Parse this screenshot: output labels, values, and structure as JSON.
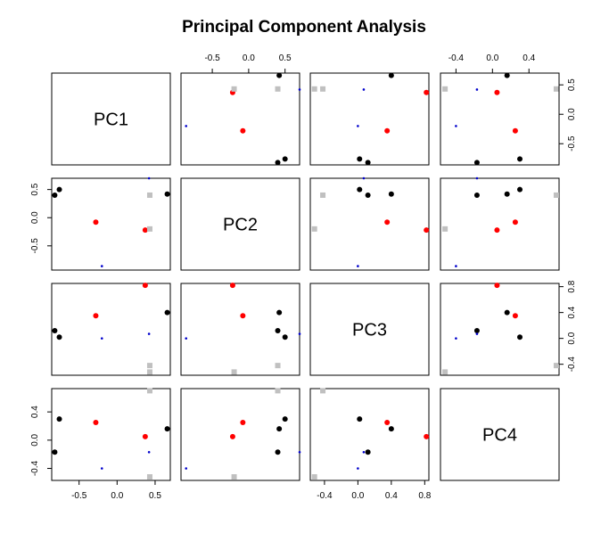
{
  "chart_data": {
    "type": "scatter",
    "title": "Principal Component Analysis",
    "variables": [
      "PC1",
      "PC2",
      "PC3",
      "PC4"
    ],
    "ranges": {
      "PC1": [
        -0.86,
        0.7
      ],
      "PC2": [
        -0.93,
        0.7
      ],
      "PC3": [
        -0.57,
        0.85
      ],
      "PC4": [
        -0.57,
        0.73
      ]
    },
    "ticks": {
      "PC1": [
        -0.5,
        0.0,
        0.5
      ],
      "PC2": [
        -0.5,
        0.0,
        0.5
      ],
      "PC3": [
        -0.4,
        0.0,
        0.4,
        0.8
      ],
      "PC4": [
        -0.4,
        0.0,
        0.4
      ]
    },
    "tick_labels": {
      "PC1": [
        "-0.5",
        "0.0",
        "0.5"
      ],
      "PC2": [
        "-0.5",
        "0.0",
        "0.5"
      ],
      "PC3": [
        "-0.4",
        "0.0",
        "0.4",
        "0.8"
      ],
      "PC4": [
        "-0.4",
        "0.0",
        "0.4"
      ]
    },
    "groups": [
      {
        "color": "#000000",
        "marker": "circle-large",
        "points": [
          {
            "PC1": -0.82,
            "PC2": 0.4,
            "PC3": 0.12,
            "PC4": -0.17
          },
          {
            "PC1": -0.76,
            "PC2": 0.5,
            "PC3": 0.02,
            "PC4": 0.3
          },
          {
            "PC1": 0.66,
            "PC2": 0.42,
            "PC3": 0.4,
            "PC4": 0.16
          }
        ]
      },
      {
        "color": "#ff0000",
        "marker": "circle",
        "points": [
          {
            "PC1": -0.28,
            "PC2": -0.08,
            "PC3": 0.35,
            "PC4": 0.25
          },
          {
            "PC1": 0.37,
            "PC2": -0.22,
            "PC3": 0.82,
            "PC4": 0.05
          }
        ]
      },
      {
        "color": "#0000cc",
        "marker": "dot",
        "points": [
          {
            "PC1": -0.2,
            "PC2": -0.86,
            "PC3": 0.0,
            "PC4": -0.4
          },
          {
            "PC1": 0.42,
            "PC2": 0.7,
            "PC3": 0.07,
            "PC4": -0.17
          }
        ]
      },
      {
        "color": "#c0c0c0",
        "marker": "square",
        "points": [
          {
            "PC1": 0.43,
            "PC2": 0.4,
            "PC3": -0.42,
            "PC4": 0.7
          },
          {
            "PC1": 0.43,
            "PC2": -0.2,
            "PC3": -0.52,
            "PC4": -0.52
          }
        ]
      }
    ]
  }
}
